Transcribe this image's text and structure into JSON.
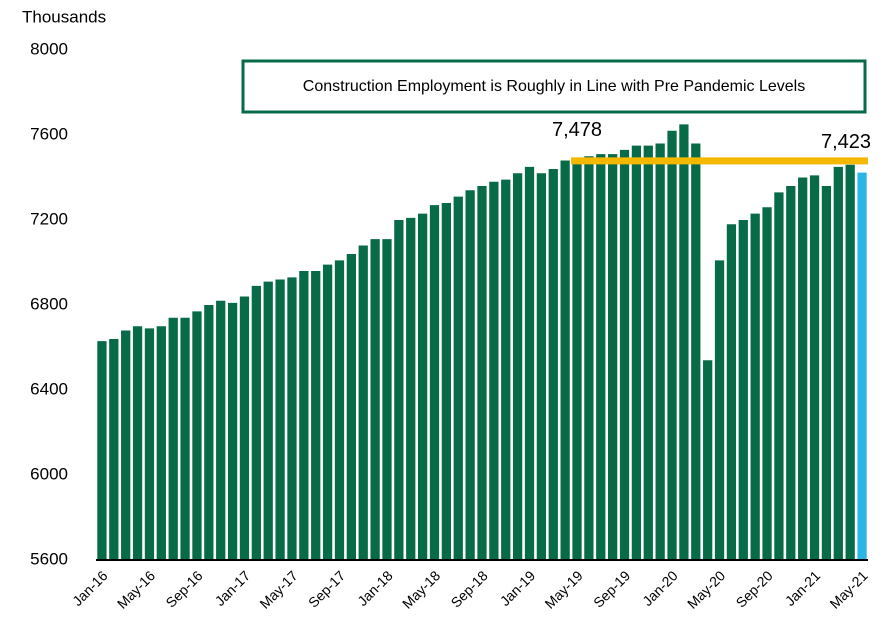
{
  "chart_data": {
    "type": "bar",
    "y_axis_label": "Thousands",
    "title": "Construction Employment is Roughly in Line with Pre Pandemic Levels",
    "categories": [
      "Jan-16",
      null,
      null,
      null,
      "May-16",
      null,
      null,
      null,
      "Sep-16",
      null,
      null,
      null,
      "Jan-17",
      null,
      null,
      null,
      "May-17",
      null,
      null,
      null,
      "Sep-17",
      null,
      null,
      null,
      "Jan-18",
      null,
      null,
      null,
      "May-18",
      null,
      null,
      null,
      "Sep-18",
      null,
      null,
      null,
      "Jan-19",
      null,
      null,
      null,
      "May-19",
      null,
      null,
      null,
      "Sep-19",
      null,
      null,
      null,
      "Jan-20",
      null,
      null,
      null,
      "May-20",
      null,
      null,
      null,
      "Sep-20",
      null,
      null,
      null,
      "Jan-21",
      null,
      null,
      null,
      "May-21"
    ],
    "values": [
      6630,
      6640,
      6680,
      6700,
      6690,
      6700,
      6740,
      6740,
      6770,
      6800,
      6820,
      6810,
      6840,
      6890,
      6910,
      6920,
      6930,
      6960,
      6960,
      6990,
      7010,
      7040,
      7080,
      7110,
      7110,
      7200,
      7210,
      7230,
      7270,
      7280,
      7310,
      7340,
      7360,
      7380,
      7390,
      7420,
      7450,
      7420,
      7440,
      7480,
      7478,
      7500,
      7510,
      7510,
      7530,
      7550,
      7550,
      7560,
      7620,
      7650,
      7560,
      6540,
      7010,
      7180,
      7200,
      7230,
      7260,
      7330,
      7360,
      7400,
      7410,
      7360,
      7450,
      7460,
      7423
    ],
    "value_labels": [
      null,
      null,
      null,
      null,
      null,
      null,
      null,
      null,
      null,
      null,
      null,
      null,
      null,
      null,
      null,
      null,
      null,
      null,
      null,
      null,
      null,
      null,
      null,
      null,
      null,
      null,
      null,
      null,
      null,
      null,
      null,
      null,
      null,
      null,
      null,
      null,
      null,
      null,
      null,
      null,
      "7,478",
      null,
      null,
      null,
      null,
      null,
      null,
      null,
      null,
      null,
      null,
      null,
      null,
      null,
      null,
      null,
      null,
      null,
      null,
      null,
      null,
      null,
      null,
      null,
      "7,423"
    ],
    "colors": [
      "#076b48",
      "#076b48",
      "#076b48",
      "#076b48",
      "#076b48",
      "#076b48",
      "#076b48",
      "#076b48",
      "#076b48",
      "#076b48",
      "#076b48",
      "#076b48",
      "#076b48",
      "#076b48",
      "#076b48",
      "#076b48",
      "#076b48",
      "#076b48",
      "#076b48",
      "#076b48",
      "#076b48",
      "#076b48",
      "#076b48",
      "#076b48",
      "#076b48",
      "#076b48",
      "#076b48",
      "#076b48",
      "#076b48",
      "#076b48",
      "#076b48",
      "#076b48",
      "#076b48",
      "#076b48",
      "#076b48",
      "#076b48",
      "#076b48",
      "#076b48",
      "#076b48",
      "#076b48",
      "#076b48",
      "#076b48",
      "#076b48",
      "#076b48",
      "#076b48",
      "#076b48",
      "#076b48",
      "#076b48",
      "#076b48",
      "#076b48",
      "#076b48",
      "#076b48",
      "#076b48",
      "#076b48",
      "#076b48",
      "#076b48",
      "#076b48",
      "#076b48",
      "#076b48",
      "#076b48",
      "#076b48",
      "#076b48",
      "#076b48",
      "#076b48",
      "#2bb5e3"
    ],
    "reference_line": {
      "value": 7478,
      "start_category": "May-19",
      "color": "#f5b800"
    },
    "ylim": [
      5600,
      8000
    ],
    "yticks": [
      5600,
      6000,
      6400,
      6800,
      7200,
      7600,
      8000
    ],
    "grid": false
  }
}
